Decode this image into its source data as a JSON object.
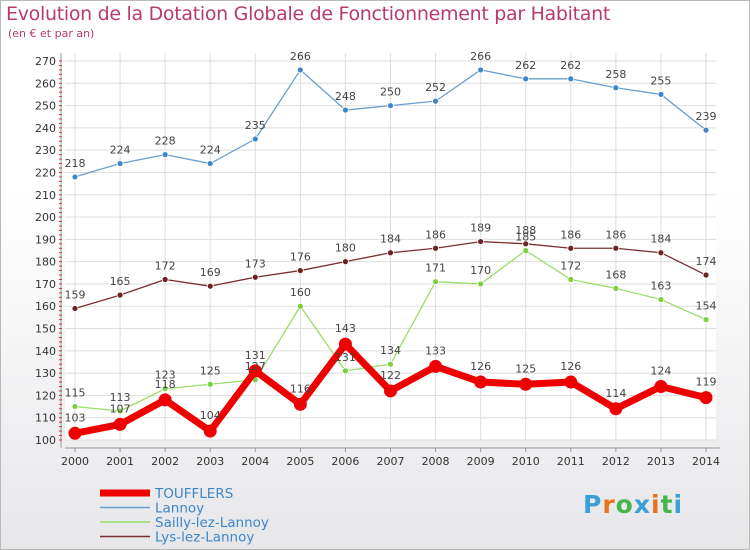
{
  "header": {
    "title": "Evolution de la Dotation Globale de Fonctionnement par Habitant",
    "subtitle": "(en € et par an)"
  },
  "logo": {
    "text": "Proxiti",
    "letter_colors": [
      "#3aa0d8",
      "#e8731f",
      "#45b649",
      "#3aa0d8",
      "#e8731f",
      "#45b649",
      "#3aa0d8"
    ]
  },
  "chart_data": {
    "type": "line",
    "title": "Evolution de la Dotation Globale de Fonctionnement par Habitant",
    "subtitle": "(en € et par an)",
    "xlabel": "",
    "ylabel": "",
    "ylim": [
      100,
      270
    ],
    "y_ticks": [
      100,
      110,
      120,
      130,
      140,
      150,
      160,
      170,
      180,
      190,
      200,
      210,
      220,
      230,
      240,
      250,
      260,
      270
    ],
    "x": [
      "2000",
      "2001",
      "2002",
      "2003",
      "2004",
      "2005",
      "2006",
      "2007",
      "2008",
      "2009",
      "2010",
      "2011",
      "2012",
      "2013",
      "2014"
    ],
    "grid": true,
    "legend_position": "bottom-left",
    "series": [
      {
        "name": "Lannoy",
        "color": "#6b9fd0",
        "marker_color": "#3d86c7",
        "line_width": 1.3,
        "marker_r": 3,
        "values": [
          218,
          224,
          228,
          224,
          235,
          266,
          248,
          250,
          252,
          266,
          262,
          262,
          258,
          255,
          239
        ]
      },
      {
        "name": "Lys-lez-Lannoy",
        "color": "#7a2f2f",
        "marker_color": "#6b2222",
        "line_width": 1.3,
        "marker_r": 3,
        "values": [
          159,
          165,
          172,
          169,
          173,
          176,
          180,
          184,
          186,
          189,
          188,
          186,
          186,
          184,
          174
        ]
      },
      {
        "name": "Sailly-lez-Lannoy",
        "color": "#9ade6a",
        "marker_color": "#7ccf3f",
        "line_width": 1.3,
        "marker_r": 3,
        "values": [
          115,
          113,
          123,
          125,
          127,
          160,
          131,
          134,
          171,
          170,
          185,
          172,
          168,
          163,
          154
        ]
      },
      {
        "name": "TOUFFLERS",
        "color": "#ee0000",
        "marker_color": "#ee0000",
        "line_width": 7,
        "marker_r": 6.5,
        "values": [
          103,
          107,
          118,
          104,
          131,
          116,
          143,
          122,
          133,
          126,
          125,
          126,
          114,
          124,
          119
        ]
      }
    ],
    "legend_order": [
      "TOUFFLERS",
      "Lannoy",
      "Sailly-lez-Lannoy",
      "Lys-lez-Lannoy"
    ],
    "data_labels": [
      {
        "series": "Lannoy",
        "texts": [
          "218",
          "224",
          "228",
          "224",
          "235",
          "266",
          "248",
          "250",
          "252",
          "266",
          "262",
          "262",
          "258",
          "255",
          "239"
        ]
      },
      {
        "series": "Lys-lez-Lannoy",
        "texts": [
          "159",
          "165",
          "172",
          "169",
          "173",
          "176",
          "180",
          "184",
          "186",
          "189",
          "188",
          "186",
          "186",
          "184",
          "174"
        ]
      },
      {
        "series": "Sailly-lez-Lannoy",
        "texts": [
          "115",
          "113",
          "123",
          "125",
          "127",
          "160",
          "131",
          "134",
          "171",
          "170",
          "185",
          "172",
          "168",
          "163",
          "154"
        ]
      },
      {
        "series": "TOUFFLERS",
        "texts": [
          "103",
          "107",
          "118",
          "104",
          "131",
          "116",
          "143",
          "122",
          "133",
          "126",
          "125",
          "126",
          "114",
          "124",
          "119"
        ]
      }
    ]
  }
}
